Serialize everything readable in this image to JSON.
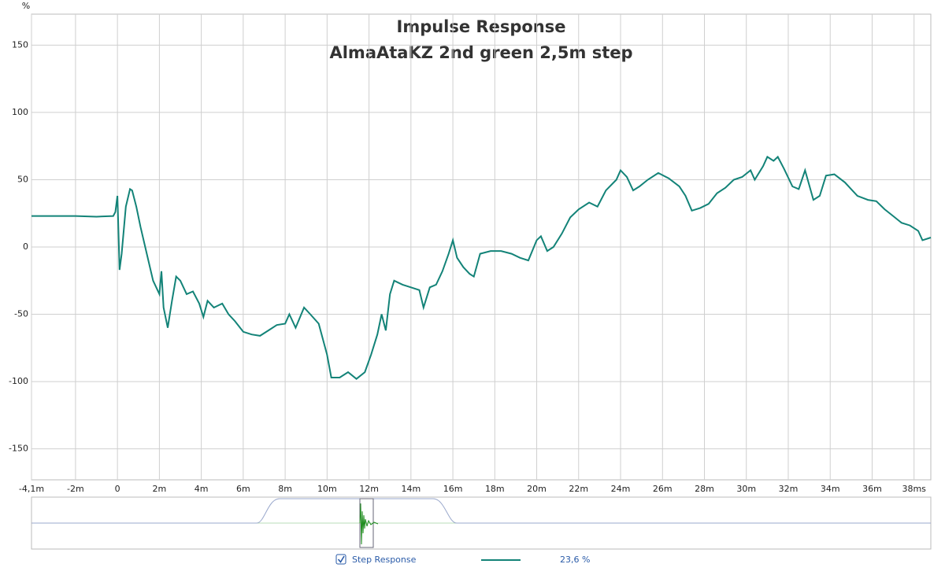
{
  "chart_data": {
    "type": "line",
    "title": "Impulse Response",
    "subtitle": "AlmaAtaKZ 2nd green 2,5m step",
    "y_label": "%",
    "x": [
      -4.1,
      -3,
      -2,
      -1,
      -0.2,
      -0.1,
      0,
      0.05,
      0.1,
      0.2,
      0.4,
      0.6,
      0.7,
      0.9,
      1.1,
      1.4,
      1.7,
      2.0,
      2.1,
      2.2,
      2.4,
      2.6,
      2.8,
      3.0,
      3.3,
      3.6,
      3.9,
      4.1,
      4.3,
      4.6,
      5.0,
      5.3,
      5.6,
      6.0,
      6.4,
      6.8,
      7.2,
      7.6,
      8.0,
      8.2,
      8.5,
      8.9,
      9.2,
      9.6,
      10.0,
      10.2,
      10.6,
      11.0,
      11.4,
      11.8,
      12.1,
      12.4,
      12.6,
      12.8,
      13.0,
      13.2,
      13.6,
      14.0,
      14.4,
      14.6,
      14.9,
      15.2,
      15.5,
      15.8,
      16.0,
      16.2,
      16.5,
      16.8,
      17.0,
      17.3,
      17.8,
      18.3,
      18.8,
      19.2,
      19.6,
      20.0,
      20.2,
      20.5,
      20.8,
      21.2,
      21.6,
      22.0,
      22.5,
      22.9,
      23.3,
      23.8,
      24.0,
      24.3,
      24.6,
      24.9,
      25.3,
      25.8,
      26.3,
      26.8,
      27.1,
      27.4,
      27.8,
      28.2,
      28.6,
      29.0,
      29.4,
      29.8,
      30.2,
      30.4,
      30.8,
      31.0,
      31.3,
      31.5,
      31.8,
      32.2,
      32.5,
      32.8,
      33.2,
      33.5,
      33.8,
      34.2,
      34.7,
      35.0,
      35.3,
      35.8,
      36.2,
      36.6,
      37.0,
      37.4,
      37.8,
      38.2,
      38.4,
      38.8
    ],
    "series": [
      {
        "name": "Step Response",
        "color": "#138378",
        "legend_value": "23,6 %",
        "values": [
          23,
          23,
          23,
          22.5,
          23,
          26,
          38,
          10,
          -17,
          -5,
          30,
          43,
          42,
          30,
          15,
          -5,
          -25,
          -35,
          -18,
          -45,
          -60,
          -40,
          -22,
          -25,
          -35,
          -33,
          -42,
          -52,
          -40,
          -45,
          -42,
          -50,
          -55,
          -63,
          -65,
          -66,
          -62,
          -58,
          -57,
          -50,
          -60,
          -45,
          -50,
          -57,
          -80,
          -97,
          -97,
          -93,
          -98,
          -93,
          -80,
          -65,
          -50,
          -62,
          -35,
          -25,
          -28,
          -30,
          -32,
          -45,
          -30,
          -28,
          -18,
          -5,
          5,
          -8,
          -15,
          -20,
          -22,
          -5,
          -3,
          -3,
          -5,
          -8,
          -10,
          5,
          8,
          -3,
          0,
          10,
          22,
          28,
          33,
          30,
          42,
          50,
          57,
          52,
          42,
          45,
          50,
          55,
          51,
          45,
          38,
          27,
          29,
          32,
          40,
          44,
          50,
          52,
          57,
          50,
          60,
          67,
          64,
          67,
          58,
          45,
          43,
          57,
          35,
          38,
          53,
          54,
          48,
          43,
          38,
          35,
          34,
          28,
          23,
          18,
          16,
          12,
          5,
          7
        ]
      }
    ],
    "xlim": [
      -4.1,
      38.8
    ],
    "ylim": [
      -173,
      173
    ],
    "xticks": [
      {
        "value": -4.1,
        "label": "-4,1m"
      },
      {
        "value": -2,
        "label": "-2m"
      },
      0,
      {
        "value": 2,
        "label": "2m"
      },
      {
        "value": 4,
        "label": "4m"
      },
      {
        "value": 6,
        "label": "6m"
      },
      {
        "value": 8,
        "label": "8m"
      },
      {
        "value": 10,
        "label": "10m"
      },
      {
        "value": 12,
        "label": "12m"
      },
      {
        "value": 14,
        "label": "14m"
      },
      {
        "value": 16,
        "label": "16m"
      },
      {
        "value": 18,
        "label": "18m"
      },
      {
        "value": 20,
        "label": "20m"
      },
      {
        "value": 22,
        "label": "22m"
      },
      {
        "value": 24,
        "label": "24m"
      },
      {
        "value": 26,
        "label": "26m"
      },
      {
        "value": 28,
        "label": "28m"
      },
      {
        "value": 30,
        "label": "30m"
      },
      {
        "value": 32,
        "label": "32m"
      },
      {
        "value": 34,
        "label": "34m"
      },
      {
        "value": 36,
        "label": "36m"
      },
      {
        "value": 38,
        "label": "38ms"
      }
    ],
    "yticks": [
      150,
      100,
      50,
      0,
      -50,
      -100,
      -150
    ],
    "grid": true
  }
}
